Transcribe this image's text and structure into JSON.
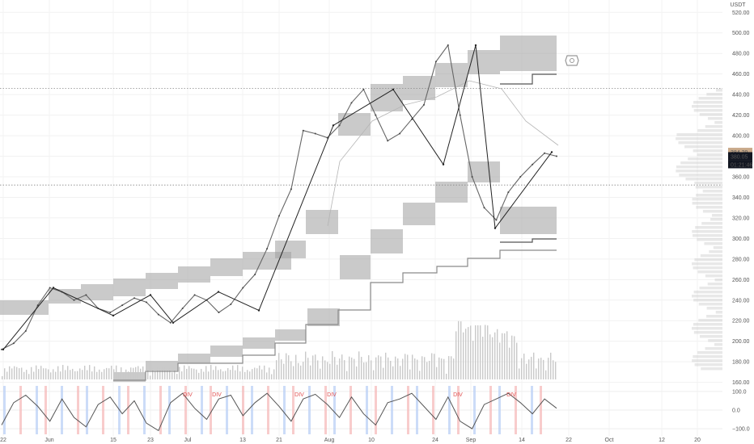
{
  "currency": "USDT",
  "price_labels": {
    "high": "384.29",
    "last": "380.05",
    "countdown": "01:21:46"
  },
  "hline_levels": [
    446,
    352
  ],
  "chart_data": [
    {
      "type": "line",
      "title": "",
      "ylim": [
        155,
        532
      ],
      "y_ticks": [
        160,
        180,
        200,
        220,
        240,
        260,
        280,
        300,
        320,
        340,
        360,
        380,
        400,
        420,
        440,
        460,
        480,
        500,
        520
      ],
      "x_ticks": [
        "22",
        "Jun",
        "15",
        "23",
        "Jul",
        "13",
        "21",
        "Aug",
        "10",
        "24",
        "Sep",
        "14",
        "22",
        "Oct",
        "12",
        "20"
      ],
      "series": [
        {
          "values": [
            192,
            198,
            210,
            235,
            252,
            248,
            240,
            245,
            232,
            228,
            235,
            242,
            238,
            226,
            218,
            232,
            245,
            240,
            228,
            236,
            252,
            265,
            290,
            322,
            348,
            405,
            402,
            398,
            410,
            432,
            445,
            420,
            395,
            402,
            416,
            430,
            472,
            488,
            420,
            360,
            330,
            318,
            345,
            360,
            372,
            383,
            380
          ]
        }
      ],
      "zigzag": [
        192,
        252,
        225,
        245,
        218,
        248,
        230,
        410,
        445,
        372,
        488,
        310,
        384
      ]
    },
    {
      "type": "line",
      "ylim": [
        -130,
        130
      ],
      "y_ticks": [
        100,
        0,
        -100
      ],
      "tick_labels": [
        "100.0",
        "0.0",
        "−100.0"
      ],
      "badges": [
        "DIV",
        "DIV",
        "DIV",
        "DIV",
        "DIV",
        "DIV"
      ],
      "series": [
        {
          "values": [
            -80,
            40,
            80,
            20,
            -60,
            60,
            -40,
            -90,
            30,
            70,
            -20,
            50,
            -70,
            -110,
            40,
            90,
            10,
            -50,
            60,
            80,
            -30,
            40,
            90,
            20,
            -60,
            60,
            85,
            30,
            -40,
            70,
            -20,
            -80,
            40,
            60,
            90,
            20,
            -50,
            70,
            -60,
            -100,
            30,
            60,
            90,
            40,
            -20,
            60,
            10
          ]
        }
      ]
    }
  ]
}
